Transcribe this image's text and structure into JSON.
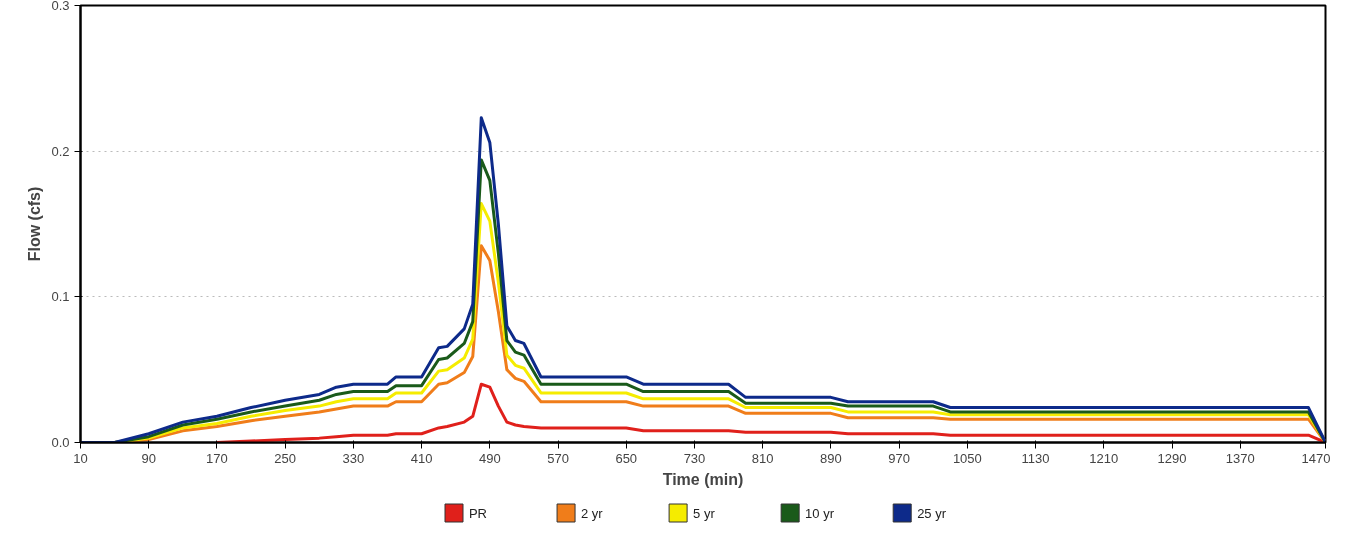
{
  "chart_data": {
    "type": "line",
    "xlabel": "Time (min)",
    "ylabel": "Flow (cfs)",
    "x": [
      10,
      50,
      90,
      130,
      170,
      210,
      250,
      290,
      310,
      330,
      370,
      380,
      410,
      430,
      440,
      460,
      470,
      480,
      490,
      500,
      510,
      520,
      530,
      550,
      650,
      670,
      770,
      790,
      890,
      910,
      1010,
      1030,
      1450,
      1470
    ],
    "series": [
      {
        "name": "PR",
        "color": "#e0201b",
        "values": [
          null,
          null,
          null,
          null,
          0,
          0.001,
          0.002,
          0.003,
          0.004,
          0.005,
          0.005,
          0.006,
          0.006,
          0.01,
          0.011,
          0.014,
          0.018,
          0.04,
          0.038,
          0.025,
          0.014,
          0.012,
          0.011,
          0.01,
          0.01,
          0.008,
          0.008,
          0.007,
          0.007,
          0.006,
          0.006,
          0.005,
          0.005,
          0
        ]
      },
      {
        "name": "2 yr",
        "color": "#f07d1a",
        "values": [
          0,
          0,
          0.002,
          0.008,
          0.011,
          0.015,
          0.018,
          0.021,
          0.023,
          0.025,
          0.025,
          0.028,
          0.028,
          0.04,
          0.041,
          0.048,
          0.059,
          0.135,
          0.125,
          0.09,
          0.05,
          0.044,
          0.042,
          0.028,
          0.028,
          0.025,
          0.025,
          0.02,
          0.02,
          0.017,
          0.017,
          0.016,
          0.016,
          0
        ]
      },
      {
        "name": "5 yr",
        "color": "#f5ec00",
        "values": [
          0,
          0,
          0.003,
          0.01,
          0.013,
          0.018,
          0.022,
          0.025,
          0.028,
          0.03,
          0.03,
          0.034,
          0.034,
          0.049,
          0.05,
          0.058,
          0.071,
          0.164,
          0.152,
          0.11,
          0.06,
          0.053,
          0.051,
          0.034,
          0.034,
          0.03,
          0.03,
          0.024,
          0.024,
          0.021,
          0.021,
          0.019,
          0.019,
          0
        ]
      },
      {
        "name": "10 yr",
        "color": "#1a5a1a",
        "values": [
          0,
          0,
          0.004,
          0.012,
          0.016,
          0.021,
          0.025,
          0.029,
          0.033,
          0.035,
          0.035,
          0.039,
          0.039,
          0.057,
          0.058,
          0.068,
          0.083,
          0.194,
          0.18,
          0.13,
          0.07,
          0.062,
          0.06,
          0.04,
          0.04,
          0.035,
          0.035,
          0.027,
          0.027,
          0.025,
          0.025,
          0.021,
          0.021,
          0
        ]
      },
      {
        "name": "25 yr",
        "color": "#0d2a8a",
        "values": [
          0,
          0,
          0.006,
          0.014,
          0.018,
          0.024,
          0.029,
          0.033,
          0.038,
          0.04,
          0.04,
          0.045,
          0.045,
          0.065,
          0.066,
          0.078,
          0.095,
          0.223,
          0.206,
          0.15,
          0.08,
          0.07,
          0.068,
          0.045,
          0.045,
          0.04,
          0.04,
          0.031,
          0.031,
          0.028,
          0.028,
          0.024,
          0.024,
          0
        ]
      }
    ],
    "xlim": [
      10,
      1470
    ],
    "ylim": [
      0,
      0.3
    ],
    "xticks": [
      10,
      90,
      170,
      250,
      330,
      410,
      490,
      570,
      650,
      730,
      810,
      890,
      970,
      1050,
      1130,
      1210,
      1290,
      1370,
      1470
    ],
    "yticks": [
      {
        "value": 0,
        "label": "0.0"
      },
      {
        "value": 0.1,
        "label": "0.1"
      },
      {
        "value": 0.2,
        "label": "0.2"
      },
      {
        "value": 0.3,
        "label": "0.3"
      }
    ],
    "grid": "y",
    "legend": "bottom",
    "marker": "none",
    "line_style": "solid"
  }
}
